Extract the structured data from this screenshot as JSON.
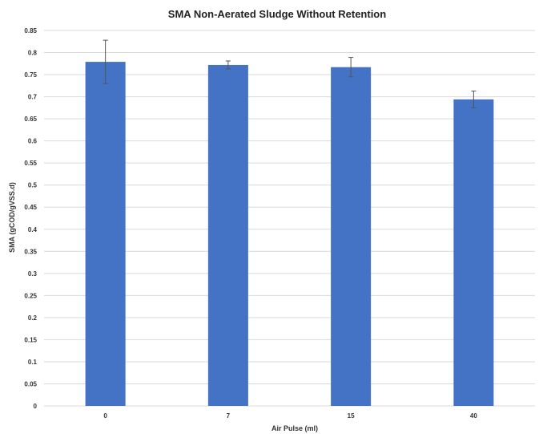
{
  "chart_data": {
    "type": "bar",
    "title": "SMA Non-Aerated Sludge Without Retention",
    "xlabel": "Air Pulse (ml)",
    "ylabel": "SMA (gCOD/gVSS.d)",
    "categories": [
      "0",
      "7",
      "15",
      "40"
    ],
    "values": [
      0.779,
      0.772,
      0.767,
      0.694
    ],
    "error": [
      0.049,
      0.009,
      0.022,
      0.019
    ],
    "ylim": [
      0,
      0.85
    ],
    "yticks": [
      0,
      0.05,
      0.1,
      0.15,
      0.2,
      0.25,
      0.3,
      0.35,
      0.4,
      0.45,
      0.5,
      0.55,
      0.6,
      0.65,
      0.7,
      0.75,
      0.8,
      0.85
    ],
    "ytick_labels": [
      "0",
      "0.05",
      "0.1",
      "0.15",
      "0.2",
      "0.25",
      "0.3",
      "0.35",
      "0.4",
      "0.45",
      "0.5",
      "0.55",
      "0.6",
      "0.65",
      "0.7",
      "0.75",
      "0.8",
      "0.85"
    ],
    "grid": true,
    "legend": "none",
    "colors": {
      "bar": "#4472c4",
      "grid": "#d9d9d9",
      "error_bar": "#555555",
      "text": "#333333"
    }
  }
}
